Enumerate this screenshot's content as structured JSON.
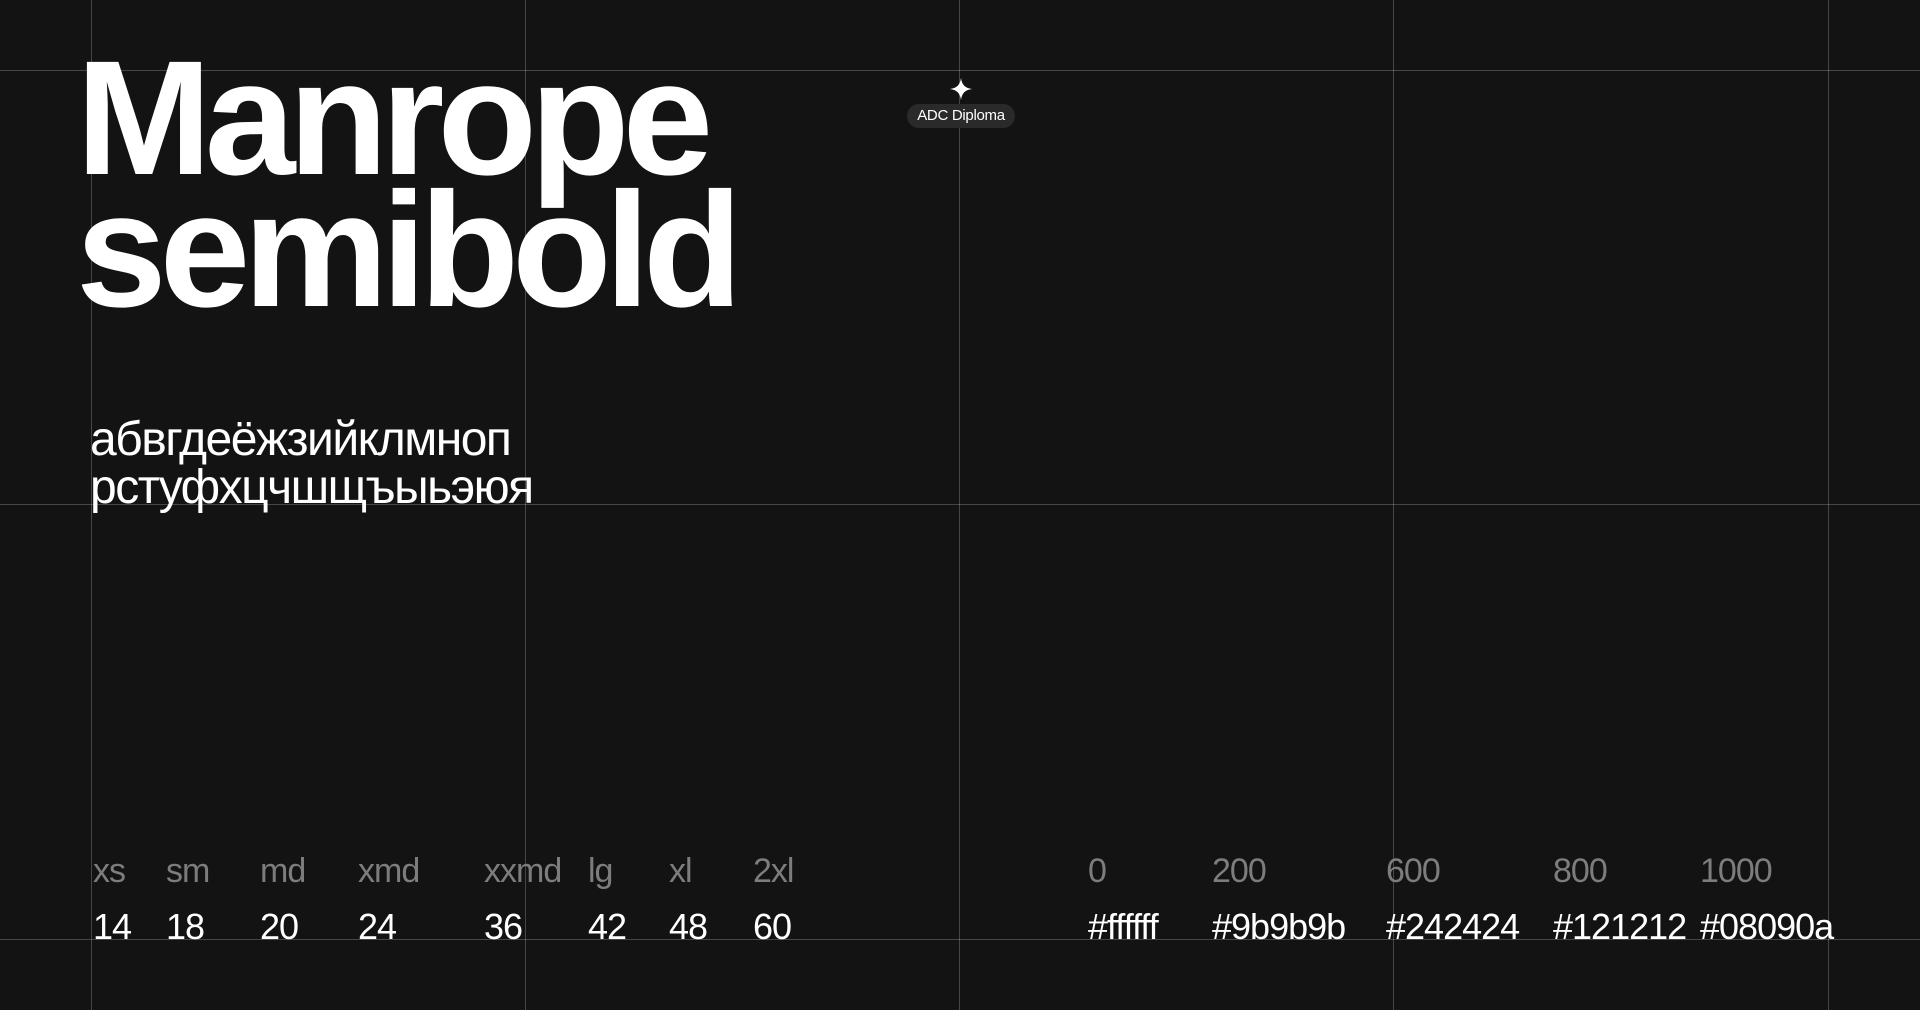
{
  "title": {
    "line1": "Manrope",
    "line2": "semibold"
  },
  "alphabet": {
    "line1": "абвгдеёжзийклмноп",
    "line2": "рстуфхцчшщъыьэюя"
  },
  "badge": {
    "label": "ADC Diploma",
    "icon": "sparkle-icon"
  },
  "sizes": {
    "labels": [
      "xs",
      "sm",
      "md",
      "xmd",
      "xxmd",
      "lg",
      "xl",
      "2xl"
    ],
    "values": [
      "14",
      "18",
      "20",
      "24",
      "36",
      "42",
      "48",
      "60"
    ]
  },
  "colors": {
    "labels": [
      "0",
      "200",
      "600",
      "800",
      "1000"
    ],
    "values": [
      "#ffffff",
      "#9b9b9b",
      "#242424",
      "#121212",
      "#08090a"
    ]
  },
  "theme": {
    "background": "#131313",
    "text": "#ffffff",
    "muted": "#7d7d7d"
  }
}
